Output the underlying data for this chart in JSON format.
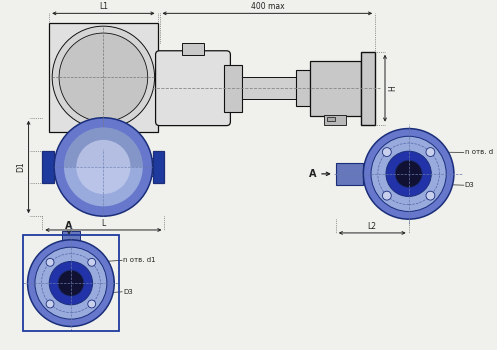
{
  "bg_color": "#f0f0ec",
  "lc": "#111111",
  "bd": "#1a2e7a",
  "bv": "#6677cc",
  "bf": "#1e3a9e",
  "bl": "#99aadd",
  "bll": "#c8d0ee",
  "gc": "#c8c8c8",
  "gd": "#999999",
  "glight": "#e0e0e0",
  "dc": "#222222",
  "dim_L1": "L1",
  "dim_L": "L",
  "dim_D1": "D1",
  "dim_400": "400 max",
  "dim_H": "H",
  "dim_L2": "L2",
  "dim_D3": "D3",
  "dim_nотв_d": "n отв. d",
  "dim_nотв_d1": "n отв. d1",
  "label_A": "A"
}
